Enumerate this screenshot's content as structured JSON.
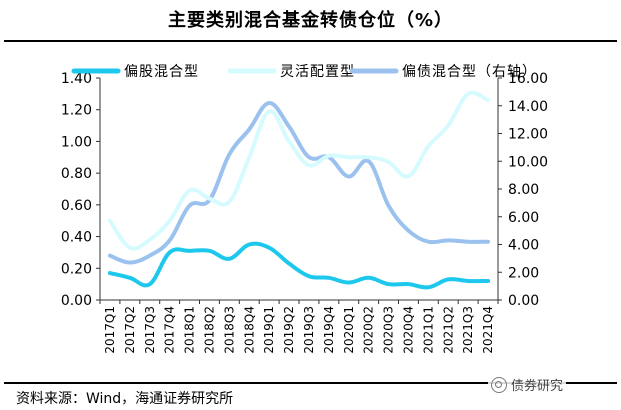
{
  "title": "主要类别混合基金转债仓位（%）",
  "source": "资料来源：Wind，海通证券研究所",
  "watermark": "债券研究",
  "colors": {
    "series1": "#1ec8ec",
    "series2": "#d6fbff",
    "series3": "#9bc2ee"
  },
  "chart_data": {
    "type": "line",
    "title": "主要类别混合基金转债仓位（%）",
    "categories": [
      "2017Q1",
      "2017Q2",
      "2017Q3",
      "2017Q4",
      "2018Q1",
      "2018Q2",
      "2018Q3",
      "2018Q4",
      "2019Q1",
      "2019Q2",
      "2019Q3",
      "2019Q4",
      "2020Q1",
      "2020Q2",
      "2020Q3",
      "2020Q4",
      "2021Q1",
      "2021Q2",
      "2021Q3",
      "2021Q4"
    ],
    "left_axis": {
      "min": 0,
      "max": 1.4,
      "ticks": [
        "0.00",
        "0.20",
        "0.40",
        "0.60",
        "0.80",
        "1.00",
        "1.20",
        "1.40"
      ]
    },
    "right_axis": {
      "min": 0,
      "max": 16,
      "ticks": [
        "0.00",
        "2.00",
        "4.00",
        "6.00",
        "8.00",
        "10.00",
        "12.00",
        "14.00",
        "16.00"
      ]
    },
    "series": [
      {
        "name": "偏股混合型",
        "axis": "left",
        "values": [
          0.17,
          0.14,
          0.1,
          0.3,
          0.31,
          0.31,
          0.26,
          0.35,
          0.33,
          0.23,
          0.15,
          0.14,
          0.11,
          0.14,
          0.1,
          0.1,
          0.08,
          0.13,
          0.12,
          0.12
        ]
      },
      {
        "name": "灵活配置型",
        "axis": "left",
        "values": [
          0.5,
          0.33,
          0.38,
          0.5,
          0.69,
          0.64,
          0.62,
          0.9,
          1.19,
          1.0,
          0.85,
          0.91,
          0.9,
          0.9,
          0.87,
          0.78,
          0.97,
          1.1,
          1.3,
          1.26
        ]
      },
      {
        "name": "偏债混合型（右轴）",
        "axis": "right",
        "values": [
          3.2,
          2.7,
          3.2,
          4.3,
          6.8,
          7.2,
          10.5,
          12.3,
          14.2,
          12.5,
          10.3,
          10.3,
          8.9,
          10.0,
          6.8,
          5.0,
          4.2,
          4.3,
          4.2,
          4.2
        ]
      }
    ],
    "legend_position": "top"
  }
}
